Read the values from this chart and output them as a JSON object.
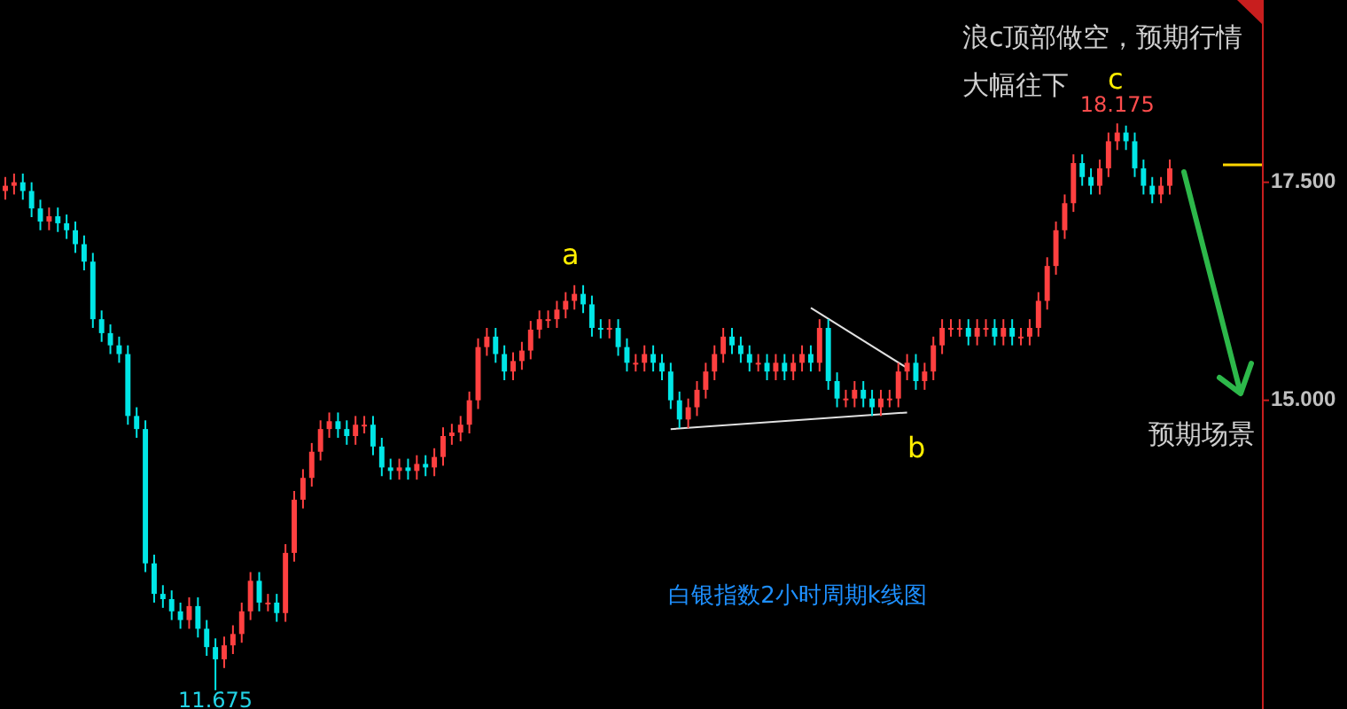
{
  "chart_data": {
    "type": "candlestick",
    "title": "白银指数2小时周期k线图",
    "categories": [
      null,
      null,
      null,
      null,
      null,
      null,
      null,
      null,
      null,
      null,
      null,
      null,
      null,
      null,
      null,
      null,
      null,
      null,
      null,
      null,
      null,
      null,
      null,
      null,
      null,
      null,
      null,
      null,
      null,
      null,
      null,
      null,
      null,
      null,
      null,
      null,
      null,
      null,
      null,
      null,
      null,
      null,
      null,
      null,
      null,
      null,
      null,
      null,
      null,
      null,
      null,
      null,
      null,
      null,
      null,
      null,
      null,
      null,
      null,
      null,
      null,
      null,
      null,
      null,
      null,
      null,
      null,
      null,
      null,
      null,
      null,
      null,
      null,
      null,
      null,
      null,
      null,
      null,
      null,
      null,
      null,
      null,
      null,
      null,
      null,
      null,
      null,
      null,
      null,
      null,
      null,
      null,
      null,
      null,
      null,
      null,
      null,
      null,
      null,
      null,
      null,
      null,
      null,
      null,
      null,
      null,
      null,
      null,
      null,
      null,
      null,
      null,
      null,
      null,
      null,
      null,
      null,
      null,
      null,
      null,
      null,
      null,
      null,
      null,
      null,
      null,
      null,
      null,
      null,
      null,
      null,
      null,
      null,
      null
    ],
    "ohlc": [
      [
        17.4,
        17.56,
        17.3,
        17.46
      ],
      [
        17.46,
        17.6,
        17.36,
        17.5
      ],
      [
        17.5,
        17.6,
        17.3,
        17.4
      ],
      [
        17.4,
        17.5,
        17.1,
        17.2
      ],
      [
        17.2,
        17.3,
        16.95,
        17.05
      ],
      [
        17.05,
        17.21,
        16.95,
        17.11
      ],
      [
        17.11,
        17.21,
        16.93,
        17.03
      ],
      [
        17.03,
        17.13,
        16.85,
        16.95
      ],
      [
        16.95,
        17.05,
        16.69,
        16.79
      ],
      [
        16.79,
        16.89,
        16.49,
        16.59
      ],
      [
        16.59,
        16.69,
        15.83,
        15.93
      ],
      [
        15.93,
        16.03,
        15.67,
        15.77
      ],
      [
        15.77,
        15.87,
        15.53,
        15.63
      ],
      [
        15.63,
        15.73,
        15.43,
        15.53
      ],
      [
        15.53,
        15.63,
        14.72,
        14.82
      ],
      [
        14.82,
        14.92,
        14.57,
        14.67
      ],
      [
        14.67,
        14.77,
        13.03,
        13.13
      ],
      [
        13.13,
        13.23,
        12.68,
        12.78
      ],
      [
        12.78,
        12.88,
        12.62,
        12.72
      ],
      [
        12.72,
        12.82,
        12.48,
        12.58
      ],
      [
        12.58,
        12.68,
        12.38,
        12.48
      ],
      [
        12.48,
        12.74,
        12.38,
        12.64
      ],
      [
        12.64,
        12.74,
        12.28,
        12.38
      ],
      [
        12.38,
        12.48,
        12.07,
        12.17
      ],
      [
        12.17,
        12.27,
        11.675,
        12.03
      ],
      [
        12.03,
        12.29,
        11.93,
        12.19
      ],
      [
        12.19,
        12.42,
        12.09,
        12.32
      ],
      [
        12.32,
        12.68,
        12.22,
        12.58
      ],
      [
        12.58,
        13.03,
        12.48,
        12.93
      ],
      [
        12.93,
        13.03,
        12.58,
        12.68
      ],
      [
        12.68,
        12.78,
        12.58,
        12.68
      ],
      [
        12.68,
        12.78,
        12.46,
        12.56
      ],
      [
        12.56,
        13.35,
        12.46,
        13.25
      ],
      [
        13.25,
        13.96,
        13.15,
        13.86
      ],
      [
        13.86,
        14.21,
        13.76,
        14.11
      ],
      [
        14.11,
        14.51,
        14.01,
        14.41
      ],
      [
        14.41,
        14.77,
        14.31,
        14.67
      ],
      [
        14.67,
        14.86,
        14.57,
        14.76
      ],
      [
        14.76,
        14.86,
        14.57,
        14.67
      ],
      [
        14.67,
        14.77,
        14.49,
        14.59
      ],
      [
        14.59,
        14.82,
        14.49,
        14.72
      ],
      [
        14.72,
        14.82,
        14.62,
        14.72
      ],
      [
        14.72,
        14.82,
        14.37,
        14.47
      ],
      [
        14.47,
        14.57,
        14.13,
        14.23
      ],
      [
        14.23,
        14.33,
        14.09,
        14.19
      ],
      [
        14.19,
        14.33,
        14.09,
        14.23
      ],
      [
        14.23,
        14.33,
        14.09,
        14.19
      ],
      [
        14.19,
        14.37,
        14.09,
        14.27
      ],
      [
        14.27,
        14.37,
        14.13,
        14.23
      ],
      [
        14.23,
        14.45,
        14.13,
        14.35
      ],
      [
        14.35,
        14.69,
        14.25,
        14.59
      ],
      [
        14.59,
        14.73,
        14.49,
        14.63
      ],
      [
        14.63,
        14.82,
        14.53,
        14.72
      ],
      [
        14.72,
        15.1,
        14.62,
        15.0
      ],
      [
        15.0,
        15.71,
        14.9,
        15.61
      ],
      [
        15.61,
        15.83,
        15.51,
        15.73
      ],
      [
        15.73,
        15.83,
        15.43,
        15.53
      ],
      [
        15.53,
        15.63,
        15.23,
        15.33
      ],
      [
        15.33,
        15.55,
        15.23,
        15.45
      ],
      [
        15.45,
        15.67,
        15.35,
        15.57
      ],
      [
        15.57,
        15.91,
        15.47,
        15.81
      ],
      [
        15.81,
        16.03,
        15.71,
        15.93
      ],
      [
        15.93,
        16.03,
        15.83,
        15.93
      ],
      [
        15.93,
        16.14,
        15.83,
        16.04
      ],
      [
        16.04,
        16.24,
        15.94,
        16.14
      ],
      [
        16.14,
        16.32,
        16.04,
        16.22
      ],
      [
        16.22,
        16.32,
        16.0,
        16.1
      ],
      [
        16.1,
        16.2,
        15.73,
        15.83
      ],
      [
        15.83,
        15.93,
        15.71,
        15.81
      ],
      [
        15.81,
        15.93,
        15.71,
        15.83
      ],
      [
        15.83,
        15.93,
        15.51,
        15.61
      ],
      [
        15.61,
        15.71,
        15.33,
        15.43
      ],
      [
        15.43,
        15.53,
        15.33,
        15.43
      ],
      [
        15.43,
        15.63,
        15.33,
        15.53
      ],
      [
        15.53,
        15.63,
        15.33,
        15.43
      ],
      [
        15.43,
        15.53,
        15.23,
        15.33
      ],
      [
        15.33,
        15.43,
        14.9,
        15.0
      ],
      [
        15.0,
        15.1,
        14.68,
        14.78
      ],
      [
        14.78,
        15.02,
        14.68,
        14.92
      ],
      [
        14.92,
        15.22,
        14.82,
        15.12
      ],
      [
        15.12,
        15.43,
        15.02,
        15.33
      ],
      [
        15.33,
        15.63,
        15.23,
        15.53
      ],
      [
        15.53,
        15.83,
        15.43,
        15.73
      ],
      [
        15.73,
        15.83,
        15.53,
        15.63
      ],
      [
        15.63,
        15.73,
        15.43,
        15.53
      ],
      [
        15.53,
        15.63,
        15.33,
        15.43
      ],
      [
        15.43,
        15.53,
        15.33,
        15.43
      ],
      [
        15.43,
        15.53,
        15.23,
        15.33
      ],
      [
        15.33,
        15.53,
        15.23,
        15.43
      ],
      [
        15.43,
        15.53,
        15.23,
        15.33
      ],
      [
        15.33,
        15.53,
        15.23,
        15.43
      ],
      [
        15.43,
        15.63,
        15.33,
        15.53
      ],
      [
        15.53,
        15.63,
        15.33,
        15.43
      ],
      [
        15.43,
        15.93,
        15.33,
        15.83
      ],
      [
        15.83,
        15.93,
        15.12,
        15.22
      ],
      [
        15.22,
        15.32,
        14.92,
        15.02
      ],
      [
        15.02,
        15.12,
        14.92,
        15.02
      ],
      [
        15.02,
        15.22,
        14.92,
        15.12
      ],
      [
        15.12,
        15.22,
        14.92,
        15.02
      ],
      [
        15.02,
        15.12,
        14.82,
        14.92
      ],
      [
        14.92,
        15.12,
        14.82,
        15.02
      ],
      [
        15.02,
        15.12,
        14.92,
        15.02
      ],
      [
        15.02,
        15.43,
        14.92,
        15.33
      ],
      [
        15.33,
        15.53,
        15.23,
        15.43
      ],
      [
        15.43,
        15.53,
        15.12,
        15.22
      ],
      [
        15.22,
        15.43,
        15.12,
        15.33
      ],
      [
        15.33,
        15.73,
        15.23,
        15.63
      ],
      [
        15.63,
        15.93,
        15.53,
        15.83
      ],
      [
        15.83,
        15.93,
        15.73,
        15.83
      ],
      [
        15.83,
        15.93,
        15.73,
        15.83
      ],
      [
        15.83,
        15.93,
        15.63,
        15.73
      ],
      [
        15.73,
        15.93,
        15.63,
        15.83
      ],
      [
        15.83,
        15.93,
        15.73,
        15.83
      ],
      [
        15.83,
        15.93,
        15.63,
        15.73
      ],
      [
        15.73,
        15.93,
        15.63,
        15.83
      ],
      [
        15.83,
        15.93,
        15.63,
        15.73
      ],
      [
        15.73,
        15.83,
        15.63,
        15.73
      ],
      [
        15.73,
        15.93,
        15.63,
        15.83
      ],
      [
        15.83,
        16.24,
        15.73,
        16.14
      ],
      [
        16.14,
        16.64,
        16.04,
        16.54
      ],
      [
        16.54,
        17.05,
        16.44,
        16.95
      ],
      [
        16.95,
        17.36,
        16.85,
        17.26
      ],
      [
        17.26,
        17.82,
        17.16,
        17.72
      ],
      [
        17.72,
        17.82,
        17.46,
        17.56
      ],
      [
        17.56,
        17.66,
        17.36,
        17.46
      ],
      [
        17.46,
        17.76,
        17.36,
        17.66
      ],
      [
        17.66,
        18.07,
        17.56,
        17.97
      ],
      [
        17.97,
        18.175,
        17.87,
        18.07
      ],
      [
        18.07,
        18.15,
        17.87,
        17.97
      ],
      [
        17.97,
        18.07,
        17.56,
        17.66
      ],
      [
        17.66,
        17.76,
        17.36,
        17.46
      ],
      [
        17.46,
        17.56,
        17.26,
        17.36
      ],
      [
        17.36,
        17.56,
        17.26,
        17.46
      ],
      [
        17.46,
        17.76,
        17.36,
        17.66
      ]
    ],
    "colors": [
      "#ff4040",
      "#ff4040",
      "#00e6e6",
      "#00e6e6",
      "#00e6e6",
      "#ff4040",
      "#00e6e6",
      "#00e6e6",
      "#00e6e6",
      "#00e6e6",
      "#00e6e6",
      "#00e6e6",
      "#00e6e6",
      "#00e6e6",
      "#00e6e6",
      "#00e6e6",
      "#00e6e6",
      "#00e6e6",
      "#00e6e6",
      "#00e6e6",
      "#00e6e6",
      "#ff4040",
      "#00e6e6",
      "#00e6e6",
      "#00e6e6",
      "#ff4040",
      "#ff4040",
      "#ff4040",
      "#ff4040",
      "#00e6e6",
      "#ff4040",
      "#00e6e6",
      "#ff4040",
      "#ff4040",
      "#ff4040",
      "#ff4040",
      "#ff4040",
      "#ff4040",
      "#00e6e6",
      "#00e6e6",
      "#ff4040",
      "#ff4040",
      "#00e6e6",
      "#00e6e6",
      "#00e6e6",
      "#ff4040",
      "#00e6e6",
      "#ff4040",
      "#00e6e6",
      "#ff4040",
      "#ff4040",
      "#ff4040",
      "#ff4040",
      "#ff4040",
      "#ff4040",
      "#ff4040",
      "#00e6e6",
      "#00e6e6",
      "#ff4040",
      "#ff4040",
      "#ff4040",
      "#ff4040",
      "#ff4040",
      "#ff4040",
      "#ff4040",
      "#ff4040",
      "#00e6e6",
      "#00e6e6",
      "#00e6e6",
      "#ff4040",
      "#00e6e6",
      "#00e6e6",
      "#ff4040",
      "#ff4040",
      "#00e6e6",
      "#00e6e6",
      "#00e6e6",
      "#00e6e6",
      "#ff4040",
      "#ff4040",
      "#ff4040",
      "#ff4040",
      "#ff4040",
      "#00e6e6",
      "#00e6e6",
      "#00e6e6",
      "#ff4040",
      "#00e6e6",
      "#ff4040",
      "#00e6e6",
      "#ff4040",
      "#ff4040",
      "#00e6e6",
      "#ff4040",
      "#00e6e6",
      "#00e6e6",
      "#ff4040",
      "#ff4040",
      "#00e6e6",
      "#00e6e6",
      "#ff4040",
      "#ff4040",
      "#ff4040",
      "#ff4040",
      "#00e6e6",
      "#ff4040",
      "#ff4040",
      "#ff4040",
      "#ff4040",
      "#ff4040",
      "#00e6e6",
      "#ff4040",
      "#ff4040",
      "#00e6e6",
      "#ff4040",
      "#00e6e6",
      "#ff4040",
      "#ff4040",
      "#ff4040",
      "#ff4040",
      "#ff4040",
      "#ff4040",
      "#ff4040",
      "#00e6e6",
      "#00e6e6",
      "#ff4040",
      "#ff4040",
      "#ff4040",
      "#00e6e6",
      "#00e6e6",
      "#00e6e6",
      "#00e6e6",
      "#ff4040",
      "#ff4040"
    ],
    "ylim": [
      11.46,
      19.59
    ],
    "yticks": [
      {
        "value": 17.5,
        "label": "17.500"
      },
      {
        "value": 15,
        "label": "15.000"
      }
    ],
    "series": [
      {
        "type": "line",
        "color": "#e0e0e0",
        "values": [
          null,
          null,
          null,
          null,
          null,
          null,
          null,
          null,
          null,
          null,
          null,
          null,
          null,
          null,
          null,
          null,
          null,
          null,
          null,
          null,
          null,
          null,
          null,
          null,
          null,
          null,
          null,
          null,
          null,
          null,
          null,
          null,
          null,
          null,
          null,
          null,
          null,
          null,
          null,
          null,
          null,
          null,
          null,
          null,
          null,
          null,
          null,
          null,
          null,
          null,
          null,
          null,
          null,
          null,
          null,
          null,
          null,
          null,
          null,
          null,
          null,
          null,
          null,
          null,
          null,
          null,
          null,
          null,
          null,
          null,
          null,
          null,
          null,
          null,
          null,
          null,
          14.67,
          null,
          null,
          null,
          null,
          null,
          null,
          null,
          null,
          null,
          null,
          null,
          null,
          null,
          null,
          null,
          null,
          null,
          null,
          null,
          null,
          null,
          null,
          null,
          null,
          null,
          null,
          14.86,
          null,
          null,
          null,
          null,
          null,
          null,
          null,
          null,
          null,
          null,
          null,
          null,
          null,
          null,
          null,
          null,
          null,
          null,
          null,
          null,
          null,
          null,
          null,
          null,
          null,
          null,
          null,
          null,
          null,
          null
        ]
      },
      {
        "type": "line",
        "color": "#e0e0e0",
        "values": [
          null,
          null,
          null,
          null,
          null,
          null,
          null,
          null,
          null,
          null,
          null,
          null,
          null,
          null,
          null,
          null,
          null,
          null,
          null,
          null,
          null,
          null,
          null,
          null,
          null,
          null,
          null,
          null,
          null,
          null,
          null,
          null,
          null,
          null,
          null,
          null,
          null,
          null,
          null,
          null,
          null,
          null,
          null,
          null,
          null,
          null,
          null,
          null,
          null,
          null,
          null,
          null,
          null,
          null,
          null,
          null,
          null,
          null,
          null,
          null,
          null,
          null,
          null,
          null,
          null,
          null,
          null,
          null,
          null,
          null,
          null,
          null,
          null,
          null,
          null,
          null,
          null,
          null,
          null,
          null,
          null,
          null,
          null,
          null,
          null,
          null,
          null,
          null,
          null,
          null,
          null,
          null,
          16.06,
          null,
          null,
          null,
          null,
          null,
          null,
          null,
          null,
          null,
          null,
          15.37,
          null,
          null,
          null,
          null,
          null,
          null,
          null,
          null,
          null,
          null,
          null,
          null,
          null,
          null,
          null,
          null,
          null,
          null,
          null,
          null,
          null,
          null,
          null,
          null,
          null,
          null,
          null,
          null,
          null,
          null
        ]
      }
    ],
    "tick_labels": "y",
    "grid": false,
    "annotations": [
      "浪c顶部做空，预期行情大幅往下",
      "a",
      "b",
      "c",
      {
        "text": "18.175",
        "y": 18.175
      },
      {
        "text": "11.675",
        "y": 11.675
      },
      "预期场景"
    ]
  }
}
